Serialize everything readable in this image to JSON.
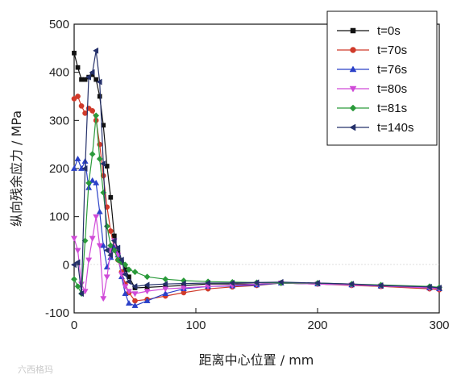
{
  "chart_data": {
    "type": "line",
    "title": "",
    "xlabel": "距离中心位置 / mm",
    "ylabel": "纵向残余应力 / MPa",
    "xlim": [
      0,
      300
    ],
    "ylim": [
      -100,
      500
    ],
    "xticks": [
      "0",
      "100",
      "200",
      "300"
    ],
    "yticks": [
      "-100",
      "0",
      "100",
      "200",
      "300",
      "400",
      "500"
    ],
    "grid": false,
    "legend_position": "top-right",
    "series": [
      {
        "name": "t=0s",
        "color": "#111111",
        "marker": "square",
        "x": [
          0,
          3,
          6,
          9,
          12,
          15,
          18,
          21,
          24,
          27,
          30,
          33,
          36,
          39,
          42,
          45,
          50,
          60,
          75,
          90,
          110,
          130,
          150,
          170,
          200,
          228,
          252,
          292,
          300
        ],
        "y": [
          440,
          410,
          385,
          385,
          390,
          395,
          385,
          350,
          290,
          205,
          140,
          60,
          25,
          5,
          -10,
          -25,
          -48,
          -47,
          -45,
          -43,
          -40,
          -40,
          -40,
          -38,
          -40,
          -42,
          -45,
          -48,
          -50
        ]
      },
      {
        "name": "t=70s",
        "color": "#d03a2a",
        "marker": "circle",
        "x": [
          0,
          3,
          6,
          9,
          12,
          15,
          18,
          21,
          24,
          27,
          30,
          33,
          36,
          39,
          42,
          45,
          50,
          60,
          75,
          90,
          110,
          130,
          150,
          170,
          200,
          228,
          252,
          292,
          300
        ],
        "y": [
          345,
          350,
          330,
          315,
          325,
          320,
          300,
          250,
          185,
          120,
          70,
          35,
          10,
          -15,
          -40,
          -58,
          -75,
          -72,
          -65,
          -58,
          -50,
          -46,
          -43,
          -38,
          -40,
          -43,
          -45,
          -50,
          -52
        ]
      },
      {
        "name": "t=76s",
        "color": "#2a40c8",
        "marker": "triangle-up",
        "x": [
          0,
          3,
          6,
          9,
          12,
          15,
          18,
          21,
          24,
          27,
          30,
          33,
          36,
          39,
          42,
          45,
          50,
          60,
          75,
          90,
          110,
          130,
          150,
          170,
          200,
          228,
          252,
          292,
          300
        ],
        "y": [
          200,
          220,
          200,
          215,
          160,
          175,
          170,
          110,
          40,
          -5,
          15,
          35,
          20,
          -25,
          -60,
          -80,
          -85,
          -75,
          -60,
          -50,
          -45,
          -44,
          -42,
          -38,
          -40,
          -42,
          -44,
          -48,
          -50
        ]
      },
      {
        "name": "t=80s",
        "color": "#d04ad8",
        "marker": "triangle-down",
        "x": [
          0,
          3,
          6,
          9,
          12,
          15,
          18,
          21,
          24,
          27,
          30,
          33,
          36,
          39,
          42,
          45,
          50,
          60,
          75,
          90,
          110,
          130,
          150,
          170,
          200,
          228,
          252,
          292,
          300
        ],
        "y": [
          55,
          30,
          -40,
          -55,
          10,
          55,
          100,
          40,
          -70,
          -25,
          30,
          50,
          20,
          -20,
          -45,
          -55,
          -60,
          -55,
          -50,
          -48,
          -45,
          -43,
          -40,
          -38,
          -40,
          -42,
          -44,
          -48,
          -50
        ]
      },
      {
        "name": "t=81s",
        "color": "#2a9a3a",
        "marker": "diamond",
        "x": [
          0,
          3,
          6,
          9,
          12,
          15,
          18,
          21,
          24,
          27,
          30,
          33,
          36,
          39,
          42,
          45,
          50,
          60,
          75,
          90,
          110,
          130,
          150,
          170,
          200,
          228,
          252,
          292,
          300
        ],
        "y": [
          -30,
          -45,
          -60,
          50,
          170,
          230,
          310,
          220,
          150,
          80,
          40,
          30,
          10,
          5,
          0,
          -10,
          -15,
          -25,
          -30,
          -33,
          -35,
          -36,
          -37,
          -38,
          -38,
          -40,
          -42,
          -45,
          -47
        ]
      },
      {
        "name": "t=140s",
        "color": "#24306a",
        "marker": "triangle-left",
        "x": [
          0,
          3,
          6,
          9,
          12,
          15,
          18,
          21,
          24,
          27,
          30,
          33,
          36,
          39,
          42,
          45,
          50,
          60,
          75,
          90,
          110,
          130,
          150,
          170,
          200,
          228,
          252,
          292,
          300
        ],
        "y": [
          0,
          5,
          -60,
          200,
          390,
          400,
          445,
          380,
          210,
          30,
          20,
          50,
          35,
          10,
          -20,
          -35,
          -45,
          -42,
          -40,
          -39,
          -38,
          -38,
          -37,
          -36,
          -38,
          -40,
          -43,
          -46,
          -48
        ]
      }
    ]
  },
  "watermark": {
    "text": "六西格玛"
  }
}
